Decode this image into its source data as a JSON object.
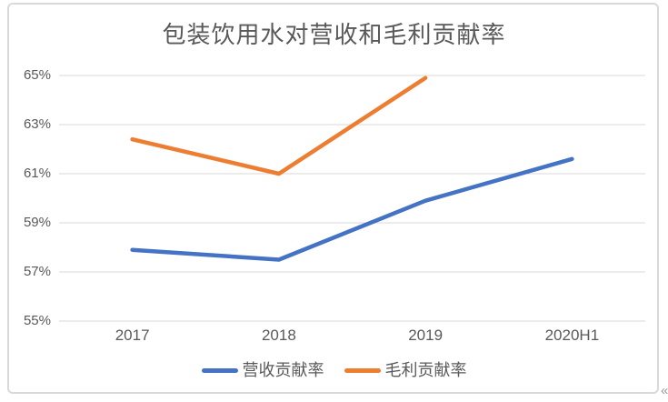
{
  "watermark_fragment": "«",
  "chart_data": {
    "type": "line",
    "title": "包装饮用水对营收和毛利贡献率",
    "categories": [
      "2017",
      "2018",
      "2019",
      "2020H1"
    ],
    "series": [
      {
        "name": "营收贡献率",
        "color": "#4472C4",
        "values": [
          57.9,
          57.5,
          59.9,
          61.6
        ]
      },
      {
        "name": "毛利贡献率",
        "color": "#ED7D31",
        "values": [
          62.4,
          61.0,
          64.9,
          null
        ]
      }
    ],
    "xlabel": "",
    "ylabel": "",
    "ylim": [
      55,
      65
    ],
    "yticks": [
      65,
      63,
      61,
      59,
      57,
      55
    ],
    "ytick_labels": [
      "65%",
      "63%",
      "61%",
      "59%",
      "57%",
      "55%"
    ],
    "grid": true,
    "legend_position": "bottom",
    "styles": {
      "grid_color": "#D9D9D9",
      "frame_border_color": "#D9D9D9",
      "title_color": "#595959",
      "axis_text_color": "#595959",
      "line_width": 4.5
    }
  }
}
